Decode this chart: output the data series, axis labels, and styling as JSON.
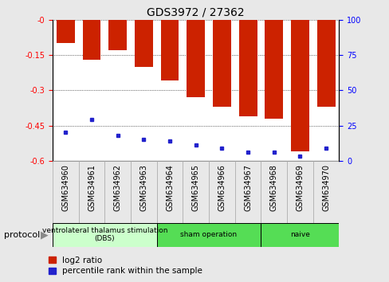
{
  "title": "GDS3972 / 27362",
  "samples": [
    "GSM634960",
    "GSM634961",
    "GSM634962",
    "GSM634963",
    "GSM634964",
    "GSM634965",
    "GSM634966",
    "GSM634967",
    "GSM634968",
    "GSM634969",
    "GSM634970"
  ],
  "log2_ratio": [
    -0.1,
    -0.17,
    -0.13,
    -0.2,
    -0.26,
    -0.33,
    -0.37,
    -0.41,
    -0.42,
    -0.56,
    -0.37
  ],
  "percentile_rank": [
    20,
    29,
    18,
    15,
    14,
    11,
    9,
    6,
    6,
    3,
    9
  ],
  "bar_color": "#cc2200",
  "dot_color": "#2222cc",
  "ylim_left": [
    -0.6,
    0.0
  ],
  "ylim_right": [
    0,
    100
  ],
  "yticks_left": [
    0,
    -0.15,
    -0.3,
    -0.45,
    -0.6
  ],
  "yticks_right": [
    0,
    25,
    50,
    75,
    100
  ],
  "grid_color": "black",
  "background_color": "#e8e8e8",
  "plot_bg": "white",
  "groups": [
    {
      "label": "ventrolateral thalamus stimulation\n(DBS)",
      "start": 0,
      "end": 3,
      "color": "#ccffcc"
    },
    {
      "label": "sham operation",
      "start": 4,
      "end": 7,
      "color": "#55dd55"
    },
    {
      "label": "naive",
      "start": 8,
      "end": 10,
      "color": "#55dd55"
    }
  ],
  "legend_items": [
    {
      "label": "log2 ratio",
      "color": "#cc2200"
    },
    {
      "label": "percentile rank within the sample",
      "color": "#2222cc"
    }
  ],
  "protocol_label": "protocol",
  "title_fontsize": 10,
  "tick_fontsize": 7,
  "label_fontsize": 8,
  "bar_width": 0.7
}
